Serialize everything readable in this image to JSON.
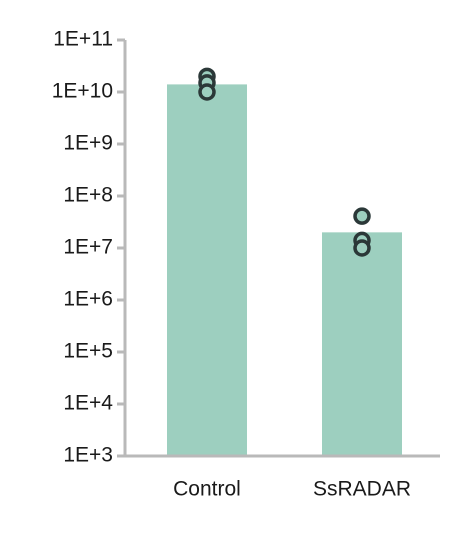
{
  "chart_data": {
    "type": "bar",
    "log_scale": true,
    "categories": [
      "Control",
      "SsRADAR"
    ],
    "values": [
      14000000000,
      20000000
    ],
    "points": [
      [
        20000000000,
        15000000000,
        10000000000
      ],
      [
        41000000,
        14000000,
        10000000
      ]
    ],
    "color": "#9dcfbf",
    "point_color": "#2b3838",
    "ylim": [
      1000,
      100000000000
    ],
    "yticks": [
      {
        "value": 1000,
        "label": "1E+3"
      },
      {
        "value": 10000,
        "label": "1E+4"
      },
      {
        "value": 100000,
        "label": "1E+5"
      },
      {
        "value": 1000000,
        "label": "1E+6"
      },
      {
        "value": 10000000,
        "label": "1E+7"
      },
      {
        "value": 100000000,
        "label": "1E+8"
      },
      {
        "value": 1000000000,
        "label": "1E+9"
      },
      {
        "value": 10000000000,
        "label": "1E+10"
      },
      {
        "value": 100000000000,
        "label": "1E+11"
      }
    ],
    "grid": false
  }
}
